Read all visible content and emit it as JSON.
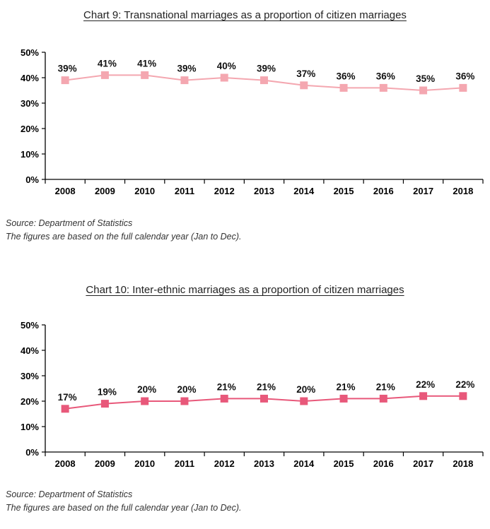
{
  "chart_data": [
    {
      "type": "line",
      "title": "Chart 9: Transnational marriages as a proportion of citizen marriages",
      "categories": [
        "2008",
        "2009",
        "2010",
        "2011",
        "2012",
        "2013",
        "2014",
        "2015",
        "2016",
        "2017",
        "2018"
      ],
      "values": [
        39,
        41,
        41,
        39,
        40,
        39,
        37,
        36,
        36,
        35,
        36
      ],
      "data_labels": [
        "39%",
        "41%",
        "41%",
        "39%",
        "40%",
        "39%",
        "37%",
        "36%",
        "36%",
        "35%",
        "36%"
      ],
      "yticks": [
        "0%",
        "10%",
        "20%",
        "30%",
        "40%",
        "50%"
      ],
      "ylim": [
        0,
        50
      ],
      "color": "#f4a7b0",
      "grid": false,
      "source": "Source: Department of Statistics",
      "note": "The figures are based on the full calendar year (Jan to Dec)."
    },
    {
      "type": "line",
      "title": "Chart 10: Inter-ethnic marriages as a proportion of citizen marriages",
      "categories": [
        "2008",
        "2009",
        "2010",
        "2011",
        "2012",
        "2013",
        "2014",
        "2015",
        "2016",
        "2017",
        "2018"
      ],
      "values": [
        17,
        19,
        20,
        20,
        21,
        21,
        20,
        21,
        21,
        22,
        22
      ],
      "data_labels": [
        "17%",
        "19%",
        "20%",
        "20%",
        "21%",
        "21%",
        "20%",
        "21%",
        "21%",
        "22%",
        "22%"
      ],
      "yticks": [
        "0%",
        "10%",
        "20%",
        "30%",
        "40%",
        "50%"
      ],
      "ylim": [
        0,
        50
      ],
      "color": "#e8587a",
      "grid": false,
      "source": "Source: Department of Statistics",
      "note": "The figures are based on the full calendar year (Jan to Dec)."
    }
  ]
}
